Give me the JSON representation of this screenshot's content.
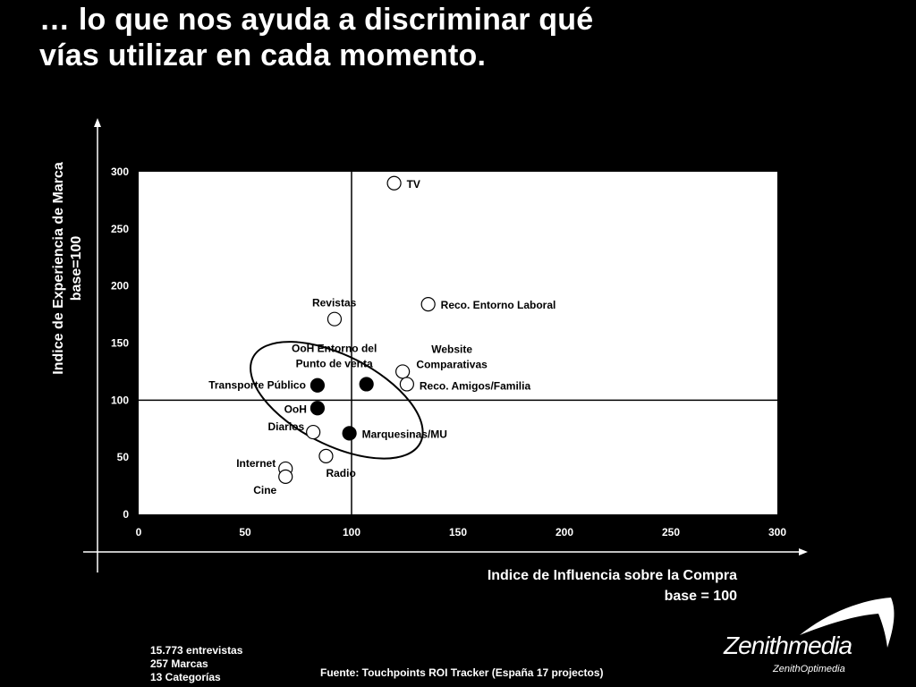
{
  "title": {
    "line1": "… lo que nos ayuda a discriminar qué",
    "line2": "vías utilizar en cada momento."
  },
  "footer": {
    "stats": [
      "15.773 entrevistas",
      "257 Marcas",
      "13 Categorías"
    ],
    "source": "Fuente: Touchpoints ROI Tracker (España 17 projectos)"
  },
  "brand": {
    "name": "Zenithmedia",
    "sub": "ZenithOptimedia"
  },
  "colors": {
    "background": "#000000",
    "plot_area": "#ffffff",
    "text": "#ffffff",
    "marker_filled": "#000000"
  },
  "chart_data": {
    "type": "scatter",
    "xlabel": [
      "Indice de Influencia sobre la Compra",
      "base = 100"
    ],
    "ylabel": [
      "Indice de Experiencia de Marca",
      "base=100"
    ],
    "xlim": [
      0,
      300
    ],
    "ylim": [
      0,
      300
    ],
    "xticks": [
      0,
      50,
      100,
      150,
      200,
      250,
      300
    ],
    "yticks": [
      0,
      50,
      100,
      150,
      200,
      250,
      300
    ],
    "reference_lines": {
      "x": 100,
      "y": 100
    },
    "grid": false,
    "points": [
      {
        "label": "TV",
        "x": 120,
        "y": 290,
        "filled": false
      },
      {
        "label": "Reco. Entorno Laboral",
        "x": 136,
        "y": 184,
        "filled": false
      },
      {
        "label": "Revistas",
        "x": 92,
        "y": 171,
        "filled": false
      },
      {
        "label": "Website Comparativas",
        "x": 124,
        "y": 125,
        "filled": false
      },
      {
        "label": "Reco. Amigos/Familia",
        "x": 126,
        "y": 114,
        "filled": false
      },
      {
        "label": "OoH Entorno del Punto de venta",
        "x": 107,
        "y": 114,
        "filled": true
      },
      {
        "label": "Transporte Público",
        "x": 84,
        "y": 113,
        "filled": true
      },
      {
        "label": "OoH",
        "x": 84,
        "y": 93,
        "filled": true
      },
      {
        "label": "Diarios",
        "x": 82,
        "y": 72,
        "filled": false
      },
      {
        "label": "Marquesinas/MU",
        "x": 99,
        "y": 71,
        "filled": true
      },
      {
        "label": "Radio",
        "x": 88,
        "y": 51,
        "filled": false
      },
      {
        "label": "Internet",
        "x": 69,
        "y": 40,
        "filled": false
      },
      {
        "label": "Cine",
        "x": 69,
        "y": 33,
        "filled": false
      }
    ]
  }
}
